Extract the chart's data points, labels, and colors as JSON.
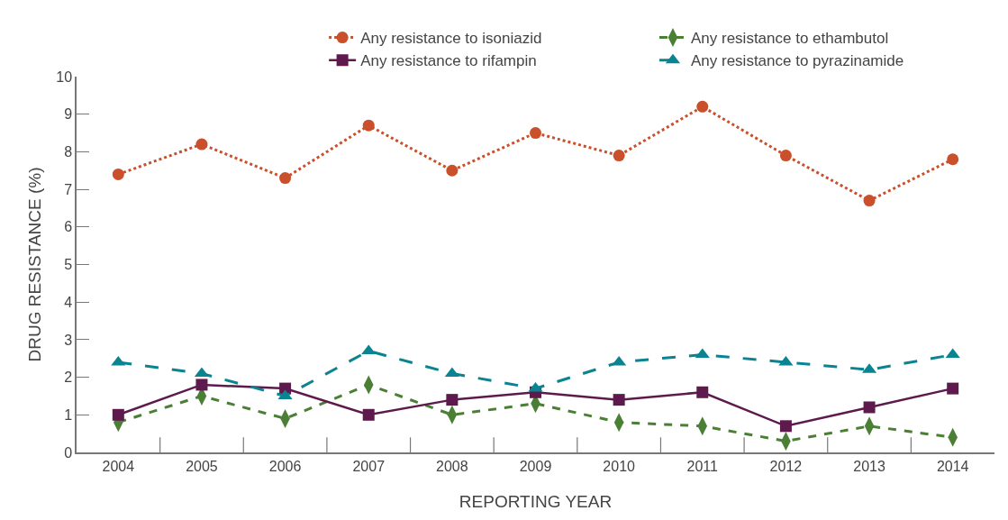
{
  "chart_data": {
    "type": "line",
    "xlabel": "REPORTING YEAR",
    "ylabel": "DRUG RESISTANCE (%)",
    "categories": [
      "2004",
      "2005",
      "2006",
      "2007",
      "2008",
      "2009",
      "2010",
      "2011",
      "2012",
      "2013",
      "2014"
    ],
    "ylim": [
      0,
      10
    ],
    "yticks": [
      0,
      1,
      2,
      3,
      4,
      5,
      6,
      7,
      8,
      9,
      10
    ],
    "legend": "top",
    "series": [
      {
        "name": "Any resistance to isoniazid",
        "color": "#c9502a",
        "marker": "circle",
        "line_style": "dotted",
        "values": [
          7.4,
          8.2,
          7.3,
          8.7,
          7.5,
          8.5,
          7.9,
          9.2,
          7.9,
          6.7,
          7.8
        ]
      },
      {
        "name": "Any resistance to ethambutol",
        "color": "#4a7f35",
        "marker": "diamond",
        "line_style": "dashed",
        "values": [
          0.8,
          1.5,
          0.9,
          1.8,
          1.0,
          1.3,
          0.8,
          0.7,
          0.3,
          0.7,
          0.4
        ]
      },
      {
        "name": "Any resistance to rifampin",
        "color": "#5e1a4c",
        "marker": "square",
        "line_style": "solid",
        "values": [
          1.0,
          1.8,
          1.7,
          1.0,
          1.4,
          1.6,
          1.4,
          1.6,
          0.7,
          1.2,
          1.7
        ]
      },
      {
        "name": "Any resistance to pyrazinamide",
        "color": "#0a8490",
        "marker": "triangle",
        "line_style": "longdash",
        "values": [
          2.4,
          2.1,
          1.5,
          2.7,
          2.1,
          1.7,
          2.4,
          2.6,
          2.4,
          2.2,
          2.6
        ]
      }
    ]
  }
}
